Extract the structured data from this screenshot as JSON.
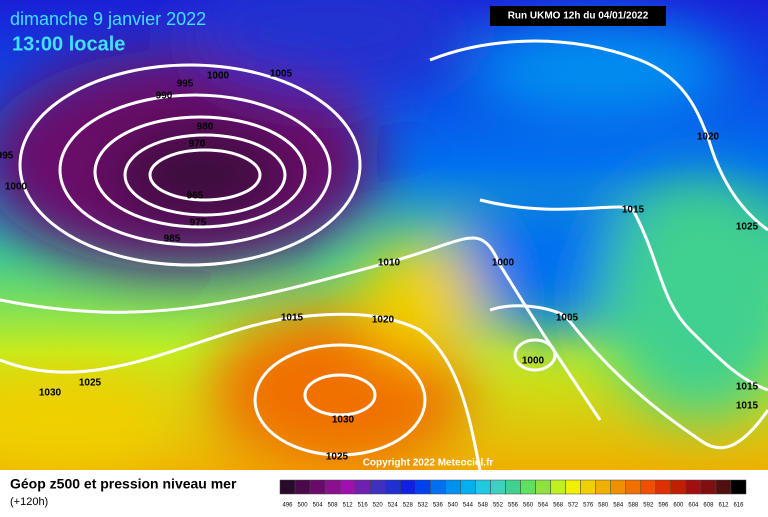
{
  "header": {
    "title": "dimanche 9 janvier 2022",
    "time": "13:00 locale",
    "run": "Run UKMO 12h du 04/01/2022"
  },
  "isobar_labels": [
    "995",
    "1000",
    "1005",
    "990",
    "980",
    "970",
    "965",
    "975",
    "985",
    "995",
    "1000",
    "1010",
    "1000",
    "1015",
    "1020",
    "1025",
    "1015",
    "1020",
    "1005",
    "1000",
    "1025",
    "1030",
    "1030",
    "1025",
    "1015",
    "1015"
  ],
  "copyright": "Copyright 2022 Meteociel.fr",
  "footer": {
    "title": "Géop z500 et pression niveau mer",
    "lead": "(+120h)"
  },
  "legend": {
    "labels": [
      "496",
      "500",
      "504",
      "508",
      "512",
      "516",
      "520",
      "524",
      "528",
      "532",
      "536",
      "540",
      "544",
      "548",
      "552",
      "556",
      "560",
      "564",
      "568",
      "572",
      "576",
      "580",
      "584",
      "588",
      "592",
      "596",
      "600",
      "604",
      "608",
      "612",
      "616"
    ],
    "colors": [
      "#2a0a2a",
      "#4a0a4a",
      "#6a0a6a",
      "#8a1090",
      "#a010b0",
      "#7020b0",
      "#4030c0",
      "#2030d0",
      "#1020e0",
      "#0040f0",
      "#0070f0",
      "#0090f0",
      "#00b0f0",
      "#20c8e0",
      "#40d0c0",
      "#40d090",
      "#60e060",
      "#90e040",
      "#c0f020",
      "#f0f000",
      "#f0d000",
      "#f0b000",
      "#f09000",
      "#f07000",
      "#f05000",
      "#e03000",
      "#c02000",
      "#a01010",
      "#801010",
      "#501010",
      "#000000"
    ]
  }
}
